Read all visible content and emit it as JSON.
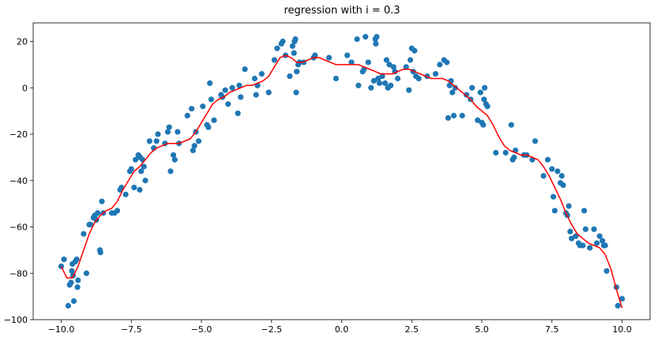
{
  "chart_data": {
    "type": "scatter",
    "title": "regression with i = 0.3",
    "xlabel": "",
    "ylabel": "",
    "xlim": [
      -11.0,
      11.0
    ],
    "ylim": [
      -100,
      28
    ],
    "xticks": [
      -10.0,
      -7.5,
      -5.0,
      -2.5,
      0.0,
      2.5,
      5.0,
      7.5,
      10.0
    ],
    "xtick_labels": [
      "−10.0",
      "−7.5",
      "−5.0",
      "−2.5",
      "0.0",
      "2.5",
      "5.0",
      "7.5",
      "10.0"
    ],
    "yticks": [
      -100,
      -80,
      -60,
      -40,
      -20,
      0,
      20
    ],
    "ytick_labels": [
      "−100",
      "−80",
      "−60",
      "−40",
      "−20",
      "0",
      "20"
    ],
    "grid": false,
    "series": [
      {
        "kind": "scatter",
        "color": "#1f77b4",
        "points": [
          [
            -10.0,
            -77
          ],
          [
            -9.9,
            -74
          ],
          [
            -9.75,
            -94
          ],
          [
            -9.7,
            -85
          ],
          [
            -9.65,
            -84
          ],
          [
            -9.62,
            -79
          ],
          [
            -9.6,
            -76
          ],
          [
            -9.58,
            -81
          ],
          [
            -9.55,
            -92
          ],
          [
            -9.5,
            -75
          ],
          [
            -9.45,
            -74
          ],
          [
            -9.42,
            -86
          ],
          [
            -9.4,
            -83
          ],
          [
            -9.2,
            -63
          ],
          [
            -9.1,
            -80
          ],
          [
            -9.0,
            -59
          ],
          [
            -8.95,
            -59
          ],
          [
            -8.85,
            -56
          ],
          [
            -8.8,
            -55
          ],
          [
            -8.75,
            -57
          ],
          [
            -8.7,
            -54
          ],
          [
            -8.62,
            -70
          ],
          [
            -8.6,
            -71
          ],
          [
            -8.55,
            -49
          ],
          [
            -8.5,
            -54
          ],
          [
            -8.2,
            -54
          ],
          [
            -8.1,
            -54
          ],
          [
            -8.0,
            -53
          ],
          [
            -7.9,
            -44
          ],
          [
            -7.85,
            -43
          ],
          [
            -7.7,
            -46
          ],
          [
            -7.55,
            -36
          ],
          [
            -7.5,
            -35
          ],
          [
            -7.4,
            -43
          ],
          [
            -7.35,
            -31
          ],
          [
            -7.25,
            -29
          ],
          [
            -7.2,
            -44
          ],
          [
            -7.18,
            -30
          ],
          [
            -7.15,
            -36
          ],
          [
            -7.1,
            -31
          ],
          [
            -7.05,
            -34
          ],
          [
            -7.0,
            -40
          ],
          [
            -6.85,
            -23
          ],
          [
            -6.7,
            -26
          ],
          [
            -6.6,
            -23
          ],
          [
            -6.55,
            -20
          ],
          [
            -6.3,
            -24
          ],
          [
            -6.2,
            -19
          ],
          [
            -6.15,
            -17
          ],
          [
            -6.1,
            -36
          ],
          [
            -6.0,
            -29
          ],
          [
            -5.95,
            -31
          ],
          [
            -5.85,
            -19
          ],
          [
            -5.8,
            -24
          ],
          [
            -5.5,
            -12
          ],
          [
            -5.35,
            -9
          ],
          [
            -5.3,
            -27
          ],
          [
            -5.25,
            -25
          ],
          [
            -5.2,
            -19
          ],
          [
            -5.1,
            -23
          ],
          [
            -4.95,
            -8
          ],
          [
            -4.8,
            -16
          ],
          [
            -4.75,
            -17
          ],
          [
            -4.7,
            2
          ],
          [
            -4.65,
            -5
          ],
          [
            -4.55,
            -14
          ],
          [
            -4.3,
            -3
          ],
          [
            -4.25,
            -4
          ],
          [
            -4.15,
            -1
          ],
          [
            -4.05,
            -7
          ],
          [
            -3.9,
            0
          ],
          [
            -3.7,
            -11
          ],
          [
            -3.6,
            -4
          ],
          [
            -3.65,
            1
          ],
          [
            -3.45,
            8
          ],
          [
            -3.1,
            4
          ],
          [
            -3.05,
            -3
          ],
          [
            -3.0,
            1
          ],
          [
            -2.85,
            6
          ],
          [
            -2.6,
            -2
          ],
          [
            -2.4,
            12
          ],
          [
            -2.3,
            17
          ],
          [
            -2.15,
            19
          ],
          [
            -2.1,
            20
          ],
          [
            -2.0,
            14
          ],
          [
            -1.85,
            5
          ],
          [
            -1.75,
            18
          ],
          [
            -1.7,
            15
          ],
          [
            -1.68,
            20
          ],
          [
            -1.65,
            21
          ],
          [
            -1.62,
            -2
          ],
          [
            -1.6,
            7
          ],
          [
            -1.55,
            10
          ],
          [
            -1.5,
            11
          ],
          [
            -1.35,
            11
          ],
          [
            -1.0,
            13
          ],
          [
            -0.95,
            14
          ],
          [
            -0.45,
            13
          ],
          [
            -0.2,
            4
          ],
          [
            0.2,
            14
          ],
          [
            0.35,
            11
          ],
          [
            0.55,
            21
          ],
          [
            0.6,
            1
          ],
          [
            0.75,
            7
          ],
          [
            0.8,
            8
          ],
          [
            0.85,
            22
          ],
          [
            0.95,
            11
          ],
          [
            1.05,
            0
          ],
          [
            1.15,
            3
          ],
          [
            1.2,
            21
          ],
          [
            1.22,
            19
          ],
          [
            1.25,
            22
          ],
          [
            1.3,
            4
          ],
          [
            1.35,
            2
          ],
          [
            1.45,
            5
          ],
          [
            1.55,
            2
          ],
          [
            1.6,
            12
          ],
          [
            1.65,
            0
          ],
          [
            1.7,
            10
          ],
          [
            1.75,
            1
          ],
          [
            1.85,
            9
          ],
          [
            1.9,
            7
          ],
          [
            2.0,
            4
          ],
          [
            2.3,
            9
          ],
          [
            2.4,
            -1
          ],
          [
            2.45,
            12
          ],
          [
            2.5,
            17
          ],
          [
            2.55,
            7
          ],
          [
            2.6,
            16
          ],
          [
            2.65,
            5
          ],
          [
            2.75,
            4
          ],
          [
            3.05,
            5
          ],
          [
            3.35,
            6
          ],
          [
            3.5,
            10
          ],
          [
            3.65,
            12
          ],
          [
            3.75,
            11
          ],
          [
            3.8,
            -13
          ],
          [
            3.85,
            1
          ],
          [
            3.9,
            3
          ],
          [
            3.95,
            -2
          ],
          [
            4.0,
            -12
          ],
          [
            4.05,
            0
          ],
          [
            4.3,
            -12
          ],
          [
            4.45,
            -3
          ],
          [
            4.6,
            -5
          ],
          [
            4.65,
            0
          ],
          [
            4.85,
            -14
          ],
          [
            4.95,
            -2
          ],
          [
            5.0,
            -15
          ],
          [
            5.05,
            -16
          ],
          [
            5.08,
            -5
          ],
          [
            5.1,
            0
          ],
          [
            5.15,
            -7
          ],
          [
            5.2,
            -8
          ],
          [
            5.5,
            -28
          ],
          [
            5.85,
            -28
          ],
          [
            6.05,
            -16
          ],
          [
            6.1,
            -31
          ],
          [
            6.15,
            -30
          ],
          [
            6.2,
            -27
          ],
          [
            6.5,
            -29
          ],
          [
            6.6,
            -29
          ],
          [
            6.8,
            -31
          ],
          [
            6.9,
            -23
          ],
          [
            7.2,
            -38
          ],
          [
            7.35,
            -31
          ],
          [
            7.5,
            -35
          ],
          [
            7.55,
            -47
          ],
          [
            7.6,
            -53
          ],
          [
            7.7,
            -36
          ],
          [
            7.8,
            -41
          ],
          [
            7.85,
            -38
          ],
          [
            7.9,
            -42
          ],
          [
            8.0,
            -54
          ],
          [
            8.05,
            -55
          ],
          [
            8.1,
            -51
          ],
          [
            8.15,
            -62
          ],
          [
            8.2,
            -65
          ],
          [
            8.35,
            -64
          ],
          [
            8.45,
            -67
          ],
          [
            8.5,
            -68
          ],
          [
            8.6,
            -68
          ],
          [
            8.65,
            -53
          ],
          [
            8.7,
            -61
          ],
          [
            8.85,
            -69
          ],
          [
            9.0,
            -61
          ],
          [
            9.1,
            -67
          ],
          [
            9.2,
            -64
          ],
          [
            9.3,
            -66
          ],
          [
            9.35,
            -68
          ],
          [
            9.4,
            -68
          ],
          [
            9.45,
            -79
          ],
          [
            9.8,
            -86
          ],
          [
            9.85,
            -94
          ],
          [
            10.0,
            -91
          ]
        ]
      },
      {
        "kind": "line",
        "color": "#ff0000",
        "points": [
          [
            -10.0,
            -77
          ],
          [
            -9.8,
            -82
          ],
          [
            -9.6,
            -82
          ],
          [
            -9.4,
            -77
          ],
          [
            -9.2,
            -70
          ],
          [
            -9.0,
            -63
          ],
          [
            -8.8,
            -58
          ],
          [
            -8.6,
            -55
          ],
          [
            -8.4,
            -53
          ],
          [
            -8.2,
            -52
          ],
          [
            -8.0,
            -49
          ],
          [
            -7.8,
            -44
          ],
          [
            -7.6,
            -40
          ],
          [
            -7.4,
            -36
          ],
          [
            -7.2,
            -34
          ],
          [
            -7.0,
            -31
          ],
          [
            -6.8,
            -28
          ],
          [
            -6.6,
            -26
          ],
          [
            -6.4,
            -25
          ],
          [
            -6.2,
            -24
          ],
          [
            -6.0,
            -24
          ],
          [
            -5.8,
            -24
          ],
          [
            -5.6,
            -23
          ],
          [
            -5.4,
            -22
          ],
          [
            -5.2,
            -19
          ],
          [
            -5.0,
            -15
          ],
          [
            -4.8,
            -11
          ],
          [
            -4.6,
            -7
          ],
          [
            -4.4,
            -5
          ],
          [
            -4.2,
            -4
          ],
          [
            -4.0,
            -2
          ],
          [
            -3.8,
            -1
          ],
          [
            -3.6,
            0
          ],
          [
            -3.4,
            1
          ],
          [
            -3.2,
            1
          ],
          [
            -3.0,
            2
          ],
          [
            -2.8,
            3
          ],
          [
            -2.6,
            5
          ],
          [
            -2.4,
            9
          ],
          [
            -2.2,
            13
          ],
          [
            -2.0,
            14
          ],
          [
            -1.8,
            13
          ],
          [
            -1.6,
            11
          ],
          [
            -1.4,
            11
          ],
          [
            -1.2,
            12
          ],
          [
            -1.0,
            13
          ],
          [
            -0.8,
            13
          ],
          [
            -0.6,
            12
          ],
          [
            -0.4,
            11
          ],
          [
            -0.2,
            10
          ],
          [
            0.0,
            10
          ],
          [
            0.2,
            10
          ],
          [
            0.4,
            10
          ],
          [
            0.6,
            10
          ],
          [
            0.8,
            9
          ],
          [
            1.0,
            8
          ],
          [
            1.2,
            7
          ],
          [
            1.4,
            6
          ],
          [
            1.6,
            6
          ],
          [
            1.8,
            6
          ],
          [
            2.0,
            7
          ],
          [
            2.2,
            8
          ],
          [
            2.4,
            8
          ],
          [
            2.6,
            7
          ],
          [
            2.8,
            6
          ],
          [
            3.0,
            5
          ],
          [
            3.2,
            4
          ],
          [
            3.4,
            4
          ],
          [
            3.6,
            4
          ],
          [
            3.8,
            3
          ],
          [
            4.0,
            1
          ],
          [
            4.2,
            -1
          ],
          [
            4.4,
            -3
          ],
          [
            4.6,
            -5
          ],
          [
            4.8,
            -8
          ],
          [
            5.0,
            -10
          ],
          [
            5.2,
            -12
          ],
          [
            5.4,
            -16
          ],
          [
            5.6,
            -21
          ],
          [
            5.8,
            -25
          ],
          [
            6.0,
            -27
          ],
          [
            6.2,
            -28
          ],
          [
            6.4,
            -29
          ],
          [
            6.6,
            -29
          ],
          [
            6.8,
            -30
          ],
          [
            7.0,
            -31
          ],
          [
            7.2,
            -34
          ],
          [
            7.4,
            -38
          ],
          [
            7.6,
            -43
          ],
          [
            7.8,
            -48
          ],
          [
            8.0,
            -54
          ],
          [
            8.2,
            -59
          ],
          [
            8.4,
            -63
          ],
          [
            8.6,
            -65
          ],
          [
            8.8,
            -67
          ],
          [
            9.0,
            -68
          ],
          [
            9.2,
            -69
          ],
          [
            9.4,
            -72
          ],
          [
            9.6,
            -78
          ],
          [
            9.8,
            -87
          ],
          [
            10.0,
            -95
          ]
        ]
      }
    ]
  }
}
